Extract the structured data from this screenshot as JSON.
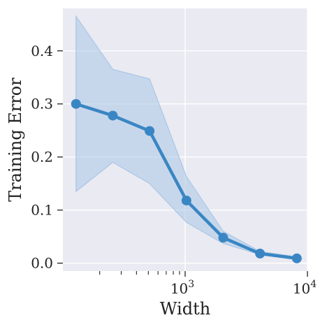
{
  "chart_data": {
    "type": "line",
    "title": "",
    "xlabel": "Width",
    "ylabel": "Training Error",
    "x_scale": "log",
    "xlim": [
      100,
      10000
    ],
    "ylim": [
      -0.015,
      0.48
    ],
    "grid": true,
    "background": "#eaeaf2",
    "x_major_ticks": [
      {
        "value": 1000,
        "base": "10",
        "exp": "3"
      },
      {
        "value": 10000,
        "base": "10",
        "exp": "4"
      }
    ],
    "x_minor_ticks": [
      200,
      300,
      400,
      500,
      600,
      700,
      800,
      900
    ],
    "y_ticks": [
      {
        "value": 0.0,
        "label": "0.0"
      },
      {
        "value": 0.1,
        "label": "0.1"
      },
      {
        "value": 0.2,
        "label": "0.2"
      },
      {
        "value": 0.3,
        "label": "0.3"
      },
      {
        "value": 0.4,
        "label": "0.4"
      }
    ],
    "series": [
      {
        "color": "#3a86c4",
        "band_color": "#a9c6e6",
        "x": [
          128,
          256,
          512,
          1024,
          2048,
          4096,
          8192
        ],
        "values": [
          0.3,
          0.278,
          0.249,
          0.118,
          0.048,
          0.018,
          0.009
        ],
        "lower": [
          0.135,
          0.19,
          0.15,
          0.077,
          0.037,
          0.016,
          0.007
        ],
        "upper": [
          0.465,
          0.365,
          0.347,
          0.163,
          0.06,
          0.022,
          0.012
        ]
      }
    ]
  }
}
